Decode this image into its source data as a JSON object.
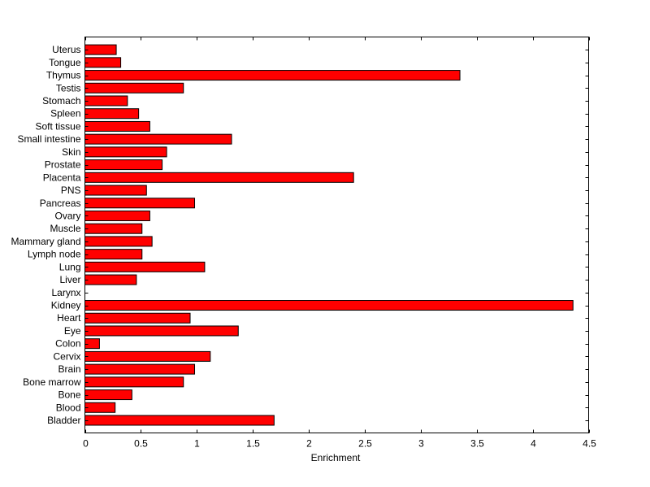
{
  "chart_data": {
    "type": "bar",
    "orientation": "horizontal",
    "title": "",
    "xlabel": "Enrichment",
    "ylabel": "",
    "xlim": [
      0,
      4.5
    ],
    "xticks": [
      "0",
      "0.5",
      "1",
      "1.5",
      "2",
      "2.5",
      "3",
      "3.5",
      "4",
      "4.5"
    ],
    "grid": false,
    "legend": "none",
    "bar_color": "#ff0000",
    "bar_edge_color": "#000000",
    "categories": [
      "Bladder",
      "Blood",
      "Bone",
      "Bone marrow",
      "Brain",
      "Cervix",
      "Colon",
      "Eye",
      "Heart",
      "Kidney",
      "Larynx",
      "Liver",
      "Lung",
      "Lymph node",
      "Mammary gland",
      "Muscle",
      "Ovary",
      "Pancreas",
      "PNS",
      "Placenta",
      "Prostate",
      "Skin",
      "Small intestine",
      "Soft tissue",
      "Spleen",
      "Stomach",
      "Testis",
      "Thymus",
      "Tongue",
      "Uterus"
    ],
    "values": [
      1.69,
      0.27,
      0.42,
      0.88,
      0.98,
      1.12,
      0.13,
      1.37,
      0.94,
      4.36,
      0.0,
      0.46,
      1.07,
      0.51,
      0.6,
      0.51,
      0.58,
      0.98,
      0.55,
      2.4,
      0.69,
      0.73,
      1.31,
      0.58,
      0.48,
      0.38,
      0.88,
      3.35,
      0.32,
      0.28
    ]
  }
}
